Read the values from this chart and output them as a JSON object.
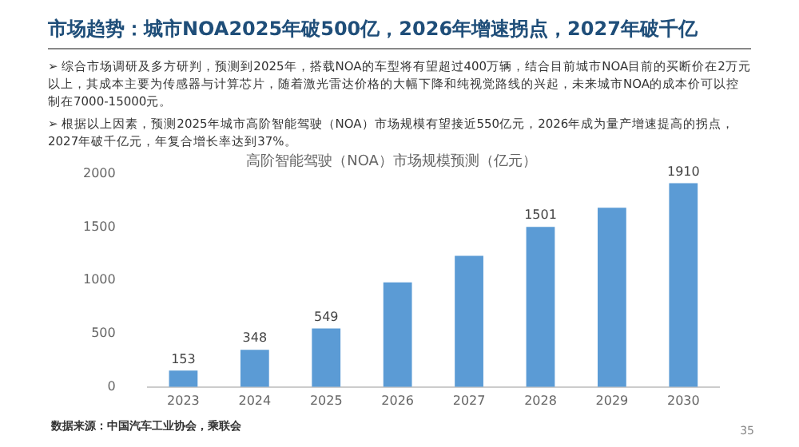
{
  "chart_data": {
    "type": "bar",
    "title": "市场趋势：城市NOA2025年破500亿，2026年增速拐点，2027年破千亿",
    "subtitle": "高阶智能驾驶（NOA）市场规模预测（亿元）",
    "categories": [
      "2023",
      "2024",
      "2025",
      "2026",
      "2027",
      "2028",
      "2029",
      "2030"
    ],
    "values": [
      153,
      348,
      549,
      980,
      1230,
      1501,
      1680,
      1910
    ],
    "value_labels": [
      "153",
      "348",
      "549",
      null,
      null,
      "1501",
      null,
      "1910"
    ],
    "color": "#5b9bd5",
    "ylim": [
      0,
      2000
    ],
    "yticks": [
      0,
      500,
      1000,
      1500,
      2000
    ],
    "grid": false,
    "legend": false,
    "annotations": [
      "➢ 综合市场调研及多方研判，预测到2025年，搭载NOA的车型将有望超过400万辆，结合目前城市NOA目前的买断价在2万元以上，其成本主要为传感器与计算芯片，随着激光雷达价格的大幅下降和纯视觉路线的兴起，未来城市NOA的成本价可以控制在7000-15000元。",
      "➢ 根据以上因素，预测2025年城市高阶智能驾驶（NOA）市场规模有望接近550亿元，2026年成为量产增速提高的拐点，2027年破千亿元，年复合增长率达到37%。",
      "数据来源：中国汽车工业协会，乘联会",
      "35"
    ]
  }
}
